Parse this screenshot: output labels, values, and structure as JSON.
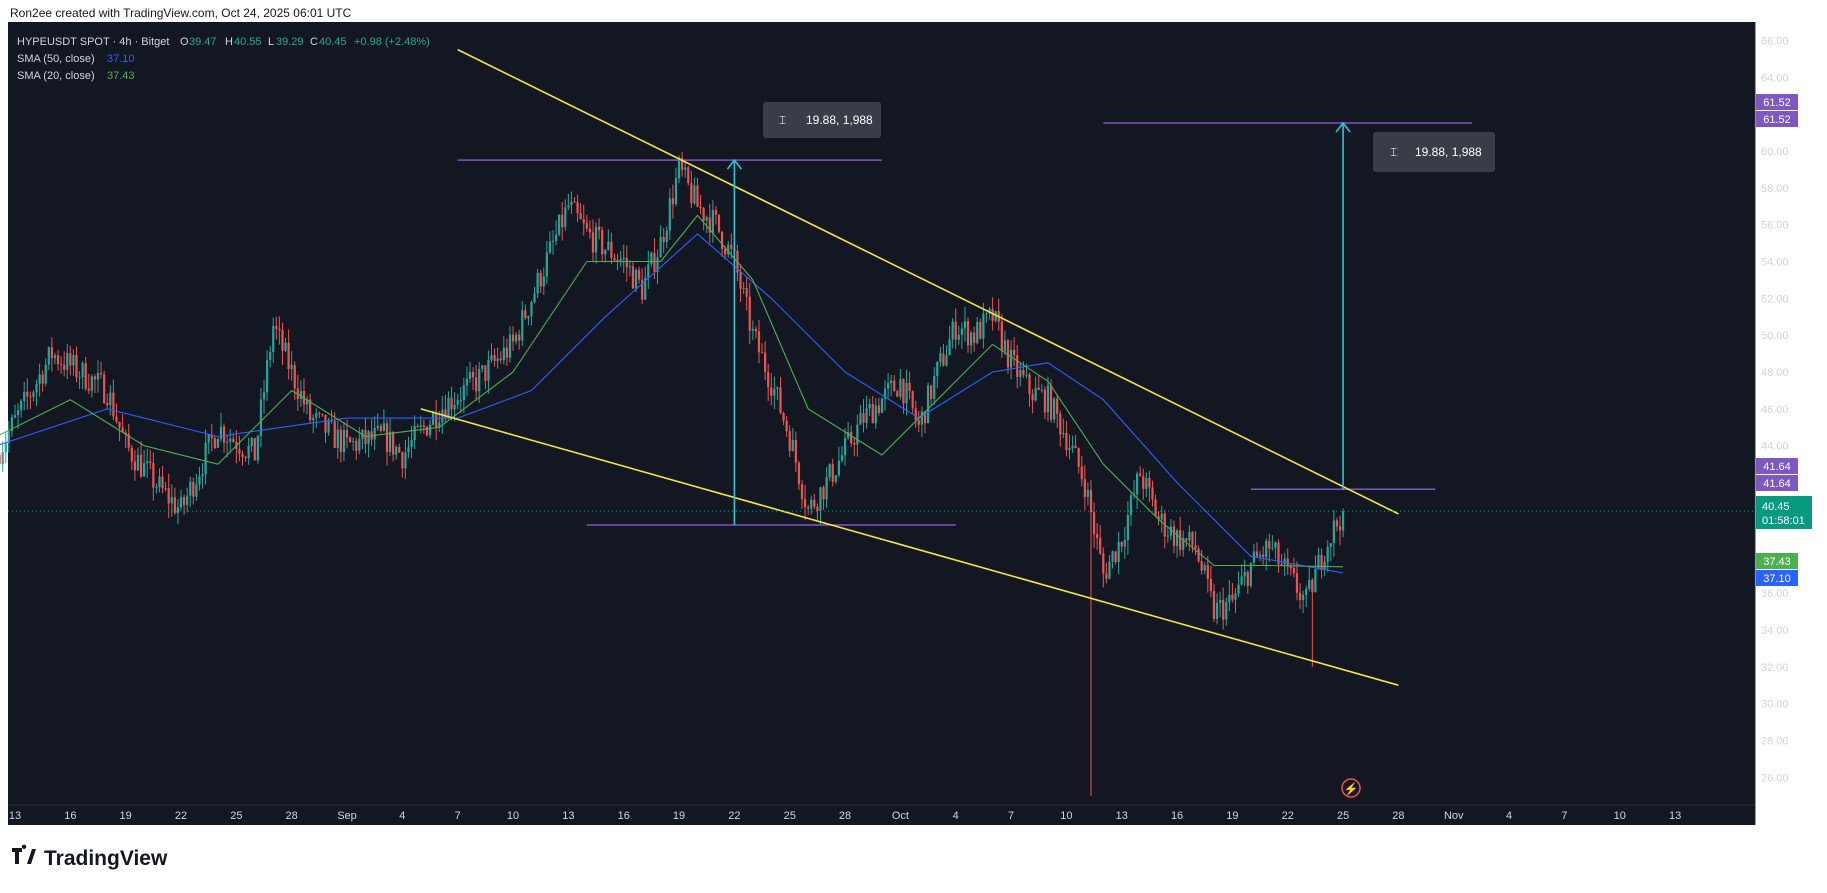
{
  "header": {
    "attribution": "Ron2ee created with TradingView.com, Oct 24, 2025 06:01 UTC"
  },
  "legend": {
    "symbol": "HYPEUSDT SPOT · 4h · Bitget",
    "o_label": "O",
    "o_value": "39.47",
    "h_label": "H",
    "h_value": "40.55",
    "l_label": "L",
    "l_value": "39.29",
    "c_label": "C",
    "c_value": "40.45",
    "change": "+0.98 (+2.48%)",
    "sma50_label": "SMA (50, close)",
    "sma50_value": "37.10",
    "sma20_label": "SMA (20, close)",
    "sma20_value": "37.43"
  },
  "measure_labels": {
    "left": "19.88, 1,988",
    "right": "19.88, 1,988"
  },
  "price_badges": {
    "target_a": "61.52",
    "target_b": "61.52",
    "breakout_a": "41.64",
    "breakout_b": "41.64",
    "last_price": "40.45",
    "countdown": "01:58:01",
    "sma20": "37.43",
    "sma50": "37.10"
  },
  "branding": {
    "logo_text": "TradingView"
  },
  "colors": {
    "background": "#131722",
    "up": "#26a69a",
    "down": "#ef5350",
    "sma50": "#2962ff",
    "sma20": "#4caf50",
    "trendline": "#f5e53d",
    "level": "#7e57c2",
    "arrow": "#26c6da",
    "last_price": "#089981"
  },
  "chart_data": {
    "type": "candlestick",
    "timeframe": "4h",
    "ylim": [
      24.5,
      67
    ],
    "y_ticks": [
      "66.00",
      "64.00",
      "62.00",
      "60.00",
      "58.00",
      "56.00",
      "54.00",
      "52.00",
      "50.00",
      "48.00",
      "46.00",
      "44.00",
      "42.00",
      "40.00",
      "38.00",
      "36.00",
      "34.00",
      "32.00",
      "30.00",
      "28.00",
      "26.00"
    ],
    "x_ticks": [
      "13",
      "16",
      "19",
      "22",
      "25",
      "28",
      "Sep",
      "4",
      "7",
      "10",
      "13",
      "16",
      "19",
      "22",
      "25",
      "28",
      "Oct",
      "4",
      "7",
      "10",
      "13",
      "16",
      "19",
      "22",
      "25",
      "28",
      "Nov",
      "4",
      "7",
      "10",
      "13"
    ],
    "x_range": [
      "2025-08-13",
      "2025-11-13"
    ],
    "price_path": [
      [
        "2025-08-12",
        43.5
      ],
      [
        "2025-08-15",
        49.0
      ],
      [
        "2025-08-18",
        47.0
      ],
      [
        "2025-08-19",
        44.0
      ],
      [
        "2025-08-21",
        41.5
      ],
      [
        "2025-08-22",
        40.5
      ],
      [
        "2025-08-24",
        45.0
      ],
      [
        "2025-08-26",
        43.5
      ],
      [
        "2025-08-27",
        50.5
      ],
      [
        "2025-08-29",
        45.5
      ],
      [
        "2025-08-31",
        44.0
      ],
      [
        "2025-09-02",
        44.5
      ],
      [
        "2025-09-03",
        43.5
      ],
      [
        "2025-09-05",
        46.0
      ],
      [
        "2025-09-07",
        47.5
      ],
      [
        "2025-09-09",
        49.5
      ],
      [
        "2025-09-10",
        52.0
      ],
      [
        "2025-09-11",
        54.5
      ],
      [
        "2025-09-12",
        57.0
      ],
      [
        "2025-09-13",
        55.5
      ],
      [
        "2025-09-15",
        54.0
      ],
      [
        "2025-09-16",
        52.5
      ],
      [
        "2025-09-17",
        55.0
      ],
      [
        "2025-09-18",
        59.0
      ],
      [
        "2025-09-19",
        57.0
      ],
      [
        "2025-09-20",
        56.0
      ],
      [
        "2025-09-21",
        54.0
      ],
      [
        "2025-09-22",
        50.0
      ],
      [
        "2025-09-23",
        47.5
      ],
      [
        "2025-09-24",
        44.5
      ],
      [
        "2025-09-25",
        40.5
      ],
      [
        "2025-09-26",
        42.0
      ],
      [
        "2025-09-28",
        45.5
      ],
      [
        "2025-09-30",
        47.5
      ],
      [
        "2025-10-01",
        45.0
      ],
      [
        "2025-10-02",
        48.0
      ],
      [
        "2025-10-03",
        50.5
      ],
      [
        "2025-10-04",
        50.0
      ],
      [
        "2025-10-05",
        51.0
      ],
      [
        "2025-10-06",
        48.5
      ],
      [
        "2025-10-07",
        47.0
      ],
      [
        "2025-10-08",
        46.5
      ],
      [
        "2025-10-09",
        44.5
      ],
      [
        "2025-10-10",
        42.0
      ],
      [
        "2025-10-11",
        37.0
      ],
      [
        "2025-10-12",
        39.0
      ],
      [
        "2025-10-13",
        42.5
      ],
      [
        "2025-10-14",
        40.0
      ],
      [
        "2025-10-15",
        39.0
      ],
      [
        "2025-10-16",
        38.5
      ],
      [
        "2025-10-17",
        35.0
      ],
      [
        "2025-10-18",
        35.5
      ],
      [
        "2025-10-19",
        37.5
      ],
      [
        "2025-10-20",
        38.5
      ],
      [
        "2025-10-21",
        37.0
      ],
      [
        "2025-10-22",
        35.5
      ],
      [
        "2025-10-23",
        38.5
      ],
      [
        "2025-10-24",
        40.45
      ]
    ],
    "wicks": [
      {
        "date": "2025-10-10",
        "low": 25.0
      },
      {
        "date": "2025-10-22",
        "low": 32.0
      }
    ],
    "sma20": [
      [
        "2025-08-12",
        44.5
      ],
      [
        "2025-08-16",
        46.5
      ],
      [
        "2025-08-20",
        44.0
      ],
      [
        "2025-08-24",
        43.0
      ],
      [
        "2025-08-28",
        47.0
      ],
      [
        "2025-09-01",
        44.5
      ],
      [
        "2025-09-05",
        45.0
      ],
      [
        "2025-09-09",
        48.0
      ],
      [
        "2025-09-13",
        54.0
      ],
      [
        "2025-09-17",
        54.0
      ],
      [
        "2025-09-19",
        56.5
      ],
      [
        "2025-09-22",
        53.0
      ],
      [
        "2025-09-25",
        46.0
      ],
      [
        "2025-09-29",
        43.5
      ],
      [
        "2025-10-02",
        46.5
      ],
      [
        "2025-10-05",
        49.5
      ],
      [
        "2025-10-08",
        47.5
      ],
      [
        "2025-10-11",
        43.0
      ],
      [
        "2025-10-14",
        40.0
      ],
      [
        "2025-10-17",
        37.5
      ],
      [
        "2025-10-20",
        37.5
      ],
      [
        "2025-10-24",
        37.43
      ]
    ],
    "sma50": [
      [
        "2025-08-12",
        44.0
      ],
      [
        "2025-08-18",
        46.0
      ],
      [
        "2025-08-24",
        44.5
      ],
      [
        "2025-08-31",
        45.5
      ],
      [
        "2025-09-06",
        45.5
      ],
      [
        "2025-09-10",
        47.0
      ],
      [
        "2025-09-14",
        51.0
      ],
      [
        "2025-09-19",
        55.5
      ],
      [
        "2025-09-23",
        52.0
      ],
      [
        "2025-09-27",
        48.0
      ],
      [
        "2025-10-01",
        45.5
      ],
      [
        "2025-10-05",
        48.0
      ],
      [
        "2025-10-08",
        48.5
      ],
      [
        "2025-10-11",
        46.5
      ],
      [
        "2025-10-15",
        42.0
      ],
      [
        "2025-10-19",
        38.0
      ],
      [
        "2025-10-24",
        37.1
      ]
    ],
    "trendlines": {
      "upper": [
        [
          "2025-09-06",
          65.5
        ],
        [
          "2025-10-27",
          40.3
        ]
      ],
      "lower": [
        [
          "2025-09-04",
          46.0
        ],
        [
          "2025-10-27",
          31.0
        ]
      ]
    },
    "levels": [
      {
        "from": "2025-09-06",
        "to": "2025-09-29",
        "price": 59.5
      },
      {
        "from": "2025-09-13",
        "to": "2025-10-03",
        "price": 39.7
      },
      {
        "from": "2025-10-11",
        "to": "2025-10-31",
        "price": 61.52
      },
      {
        "from": "2025-10-19",
        "to": "2025-10-29",
        "price": 41.64
      }
    ],
    "measures": [
      {
        "date": "2025-09-21",
        "from": 39.7,
        "to": 59.5
      },
      {
        "date": "2025-10-24",
        "from": 41.64,
        "to": 61.52
      }
    ],
    "last_price": 40.45
  }
}
